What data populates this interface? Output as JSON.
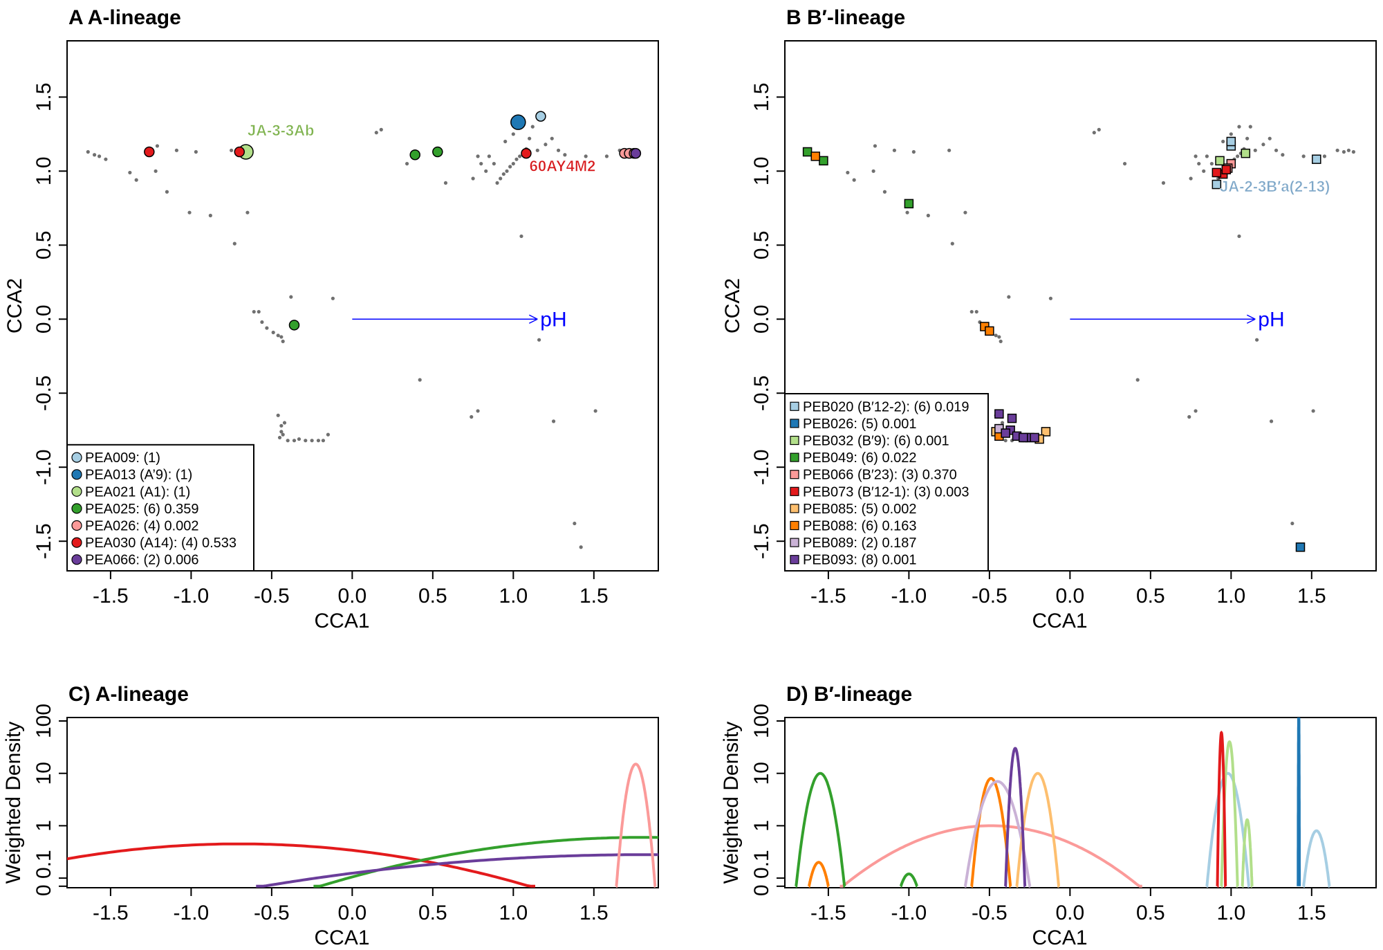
{
  "chart_data": [
    {
      "id": "A",
      "type": "scatter",
      "title": "A  A-lineage",
      "xlabel": "CCA1",
      "ylabel": "CCA2",
      "xlim": [
        -1.77,
        1.9
      ],
      "ylim": [
        -1.7,
        1.88
      ],
      "xticks": [
        "-1.5",
        "-1.0",
        "-0.5",
        "0.0",
        "0.5",
        "1.0",
        "1.5"
      ],
      "yticks": [
        "-1.5",
        "-1.0",
        "-0.5",
        "0.0",
        "0.5",
        "1.0",
        "1.5"
      ],
      "marker": "circle",
      "legend_position": "bottom-left",
      "arrow": {
        "label": "pH",
        "from": [
          0,
          0
        ],
        "to": [
          1.15,
          0
        ],
        "color": "#0000ff"
      },
      "annotations": [
        {
          "text": "JA-3-3Ab",
          "x": -0.65,
          "y": 1.24,
          "color": "#7fb34f"
        },
        {
          "text": "60AY4M2",
          "x": 1.1,
          "y": 1.0,
          "color": "#d7191c"
        }
      ],
      "series": [
        {
          "name": "PEA009: (1)",
          "color": "#a6cee3",
          "points": [
            [
              1.17,
              1.37
            ]
          ],
          "size": 1
        },
        {
          "name": "PEA013 (A’9): (1)",
          "color": "#1f78b4",
          "points": [
            [
              1.03,
              1.33
            ]
          ],
          "size": 1.5
        },
        {
          "name": "PEA021 (A1): (1)",
          "color": "#b2df8a",
          "points": [
            [
              -0.66,
              1.13
            ]
          ],
          "size": 1.5
        },
        {
          "name": "PEA025: (6) 0.359",
          "color": "#33a02c",
          "points": [
            [
              0.39,
              1.11
            ],
            [
              0.53,
              1.13
            ],
            [
              -0.36,
              -0.04
            ]
          ],
          "size": 1
        },
        {
          "name": "PEA026: (4) 0.002",
          "color": "#fb9a99",
          "points": [
            [
              1.69,
              1.12
            ],
            [
              1.72,
              1.12
            ],
            [
              1.75,
              1.12
            ]
          ],
          "size": 1
        },
        {
          "name": "PEA030 (A14): (4) 0.533",
          "color": "#e31a1c",
          "points": [
            [
              -1.26,
              1.13
            ],
            [
              -0.7,
              1.13
            ],
            [
              1.08,
              1.12
            ]
          ],
          "size": 1
        },
        {
          "name": "PEA066: (2) 0.006",
          "color": "#6a3d9a",
          "points": [
            [
              1.76,
              1.12
            ]
          ],
          "size": 1
        }
      ]
    },
    {
      "id": "B",
      "type": "scatter",
      "title": "B  B′-lineage",
      "xlabel": "CCA1",
      "ylabel": "CCA2",
      "xlim": [
        -1.77,
        1.9
      ],
      "ylim": [
        -1.7,
        1.88
      ],
      "xticks": [
        "-1.5",
        "-1.0",
        "-0.5",
        "0.0",
        "0.5",
        "1.0",
        "1.5"
      ],
      "yticks": [
        "-1.5",
        "-1.0",
        "-0.5",
        "0.0",
        "0.5",
        "1.0",
        "1.5"
      ],
      "marker": "square",
      "legend_position": "bottom-left",
      "arrow": {
        "label": "pH",
        "from": [
          0,
          0
        ],
        "to": [
          1.15,
          0
        ],
        "color": "#0000ff"
      },
      "annotations": [
        {
          "text": "JA-2-3B′a(2-13)",
          "x": 0.93,
          "y": 0.86,
          "color": "#7fa8c9"
        }
      ],
      "series": [
        {
          "name": "PEB020 (B′12-2): (6) 0.019",
          "color": "#a6cee3",
          "points": [
            [
              1.0,
              1.17
            ],
            [
              0.91,
              0.91
            ],
            [
              1.53,
              1.08
            ],
            [
              1.0,
              1.2
            ]
          ]
        },
        {
          "name": "PEB026: (5) 0.001",
          "color": "#1f78b4",
          "points": [
            [
              1.43,
              -1.54
            ]
          ]
        },
        {
          "name": "PEB032 (B′9): (6) 0.001",
          "color": "#b2df8a",
          "points": [
            [
              1.09,
              1.12
            ],
            [
              0.93,
              1.07
            ]
          ]
        },
        {
          "name": "PEB049: (6) 0.022",
          "color": "#33a02c",
          "points": [
            [
              -1.63,
              1.13
            ],
            [
              -1.53,
              1.07
            ],
            [
              -1.0,
              0.78
            ]
          ]
        },
        {
          "name": "PEB066 (B′23): (3) 0.370",
          "color": "#fb9a99",
          "points": [
            [
              1.0,
              1.05
            ],
            [
              0.98,
              1.02
            ]
          ]
        },
        {
          "name": "PEB073 (B′12-1): (3) 0.003",
          "color": "#e31a1c",
          "points": [
            [
              0.95,
              0.98
            ],
            [
              0.91,
              0.99
            ],
            [
              0.97,
              1.01
            ]
          ]
        },
        {
          "name": "PEB085: (5) 0.002",
          "color": "#fdbf6f",
          "points": [
            [
              -0.15,
              -0.76
            ],
            [
              -0.19,
              -0.81
            ],
            [
              -0.46,
              -0.76
            ]
          ]
        },
        {
          "name": "PEB088: (6) 0.163",
          "color": "#ff7f00",
          "points": [
            [
              -1.58,
              1.1
            ],
            [
              -0.53,
              -0.05
            ],
            [
              -0.5,
              -0.08
            ],
            [
              -0.44,
              -0.79
            ]
          ]
        },
        {
          "name": "PEB089: (2) 0.187",
          "color": "#cab2d6",
          "points": [
            [
              -0.44,
              -0.74
            ],
            [
              -0.28,
              -0.8
            ]
          ]
        },
        {
          "name": "PEB093: (8) 0.001",
          "color": "#6a3d9a",
          "points": [
            [
              -0.44,
              -0.64
            ],
            [
              -0.36,
              -0.67
            ],
            [
              -0.37,
              -0.75
            ],
            [
              -0.33,
              -0.79
            ],
            [
              -0.25,
              -0.8
            ],
            [
              -0.22,
              -0.8
            ],
            [
              -0.4,
              -0.77
            ],
            [
              -0.29,
              -0.8
            ]
          ]
        }
      ]
    },
    {
      "id": "C",
      "type": "line",
      "title": "C) A-lineage",
      "xlabel": "CCA1",
      "ylabel": "Weighted Density",
      "xlim": [
        -1.77,
        1.9
      ],
      "xticks": [
        "-1.5",
        "-1.0",
        "-0.5",
        "0.0",
        "0.5",
        "1.0",
        "1.5"
      ],
      "yticks": [
        "0",
        "0.1",
        "1",
        "10",
        "100"
      ],
      "yscale": "log",
      "series": [
        {
          "color": "#e31a1c",
          "peaks": [
            [
              -0.7,
              0.45,
              1.8
            ]
          ]
        },
        {
          "color": "#33a02c",
          "peaks": [
            [
              1.8,
              0.6,
              2.0
            ]
          ]
        },
        {
          "color": "#6a3d9a",
          "peaks": [
            [
              1.8,
              0.28,
              2.35
            ]
          ]
        },
        {
          "color": "#fb9a99",
          "peaks": [
            [
              1.76,
              15,
              0.12
            ]
          ]
        }
      ]
    },
    {
      "id": "D",
      "type": "line",
      "title": "D) B′-lineage",
      "xlabel": "CCA1",
      "ylabel": "Weighted Density",
      "xlim": [
        -1.77,
        1.9
      ],
      "xticks": [
        "-1.5",
        "-1.0",
        "-0.5",
        "0.0",
        "0.5",
        "1.0",
        "1.5"
      ],
      "yticks": [
        "0",
        "0.1",
        "1",
        "10",
        "100"
      ],
      "yscale": "log",
      "series": [
        {
          "color": "#fb9a99",
          "peaks": [
            [
              -0.49,
              1.0,
              0.92
            ]
          ]
        },
        {
          "color": "#33a02c",
          "peaks": [
            [
              -1.55,
              10,
              0.15
            ],
            [
              -1.0,
              0.12,
              0.05
            ]
          ]
        },
        {
          "color": "#ff7f00",
          "peaks": [
            [
              -1.56,
              0.2,
              0.06
            ],
            [
              -0.49,
              8,
              0.12
            ]
          ]
        },
        {
          "color": "#cab2d6",
          "peaks": [
            [
              -0.45,
              7,
              0.2
            ]
          ]
        },
        {
          "color": "#fdbf6f",
          "peaks": [
            [
              -0.2,
              10,
              0.13
            ]
          ]
        },
        {
          "color": "#6a3d9a",
          "peaks": [
            [
              -0.34,
              30,
              0.06
            ]
          ]
        },
        {
          "color": "#a6cee3",
          "peaks": [
            [
              0.98,
              10,
              0.13
            ],
            [
              1.53,
              0.8,
              0.08
            ]
          ]
        },
        {
          "color": "#b2df8a",
          "peaks": [
            [
              0.99,
              40,
              0.05
            ],
            [
              1.1,
              1.3,
              0.03
            ]
          ]
        },
        {
          "color": "#e31a1c",
          "peaks": [
            [
              0.94,
              60,
              0.025
            ]
          ]
        },
        {
          "color": "#1f78b4",
          "peaks": [
            [
              1.42,
              200,
              0.004
            ]
          ]
        }
      ]
    }
  ],
  "background_points": [
    [
      -1.64,
      1.13
    ],
    [
      -1.6,
      1.11
    ],
    [
      -1.57,
      1.1
    ],
    [
      -1.53,
      1.08
    ],
    [
      -1.38,
      0.99
    ],
    [
      -1.34,
      0.94
    ],
    [
      -1.21,
      1.17
    ],
    [
      -1.22,
      1.0
    ],
    [
      -1.15,
      0.86
    ],
    [
      -1.09,
      1.14
    ],
    [
      -1.01,
      0.72
    ],
    [
      -0.97,
      1.13
    ],
    [
      -0.88,
      0.7
    ],
    [
      -0.73,
      0.51
    ],
    [
      -0.65,
      0.72
    ],
    [
      -0.75,
      1.14
    ],
    [
      -0.61,
      0.05
    ],
    [
      -0.58,
      0.05
    ],
    [
      -0.56,
      -0.02
    ],
    [
      -0.53,
      -0.06
    ],
    [
      -0.49,
      -0.09
    ],
    [
      -0.46,
      -0.11
    ],
    [
      -0.44,
      -0.12
    ],
    [
      -0.38,
      0.15
    ],
    [
      -0.43,
      -0.15
    ],
    [
      -0.12,
      0.14
    ],
    [
      -0.46,
      -0.65
    ],
    [
      -0.44,
      -0.72
    ],
    [
      -0.43,
      -0.78
    ],
    [
      -0.45,
      -0.8
    ],
    [
      -0.4,
      -0.82
    ],
    [
      -0.36,
      -0.82
    ],
    [
      -0.33,
      -0.81
    ],
    [
      -0.29,
      -0.82
    ],
    [
      -0.25,
      -0.82
    ],
    [
      -0.21,
      -0.82
    ],
    [
      -0.18,
      -0.82
    ],
    [
      -0.15,
      -0.78
    ],
    [
      -0.42,
      -0.7
    ],
    [
      -0.44,
      -0.76
    ],
    [
      0.15,
      1.26
    ],
    [
      0.18,
      1.28
    ],
    [
      0.34,
      1.05
    ],
    [
      0.58,
      0.92
    ],
    [
      0.42,
      -0.41
    ],
    [
      0.74,
      -0.66
    ],
    [
      0.78,
      -0.62
    ],
    [
      1.05,
      0.56
    ],
    [
      1.16,
      -0.14
    ],
    [
      1.25,
      -0.69
    ],
    [
      1.51,
      -0.62
    ],
    [
      1.38,
      -1.38
    ],
    [
      1.42,
      -1.54
    ],
    [
      0.9,
      0.92
    ],
    [
      0.92,
      0.95
    ],
    [
      0.94,
      0.98
    ],
    [
      0.96,
      1.0
    ],
    [
      0.98,
      1.03
    ],
    [
      1.0,
      1.05
    ],
    [
      1.02,
      1.08
    ],
    [
      1.04,
      1.1
    ],
    [
      1.06,
      1.12
    ],
    [
      1.08,
      1.15
    ],
    [
      0.88,
      1.05
    ],
    [
      0.85,
      1.1
    ],
    [
      0.83,
      1.0
    ],
    [
      0.95,
      1.2
    ],
    [
      1.0,
      1.25
    ],
    [
      1.05,
      1.3
    ],
    [
      1.12,
      1.3
    ],
    [
      1.1,
      1.22
    ],
    [
      1.15,
      1.14
    ],
    [
      1.28,
      1.14
    ],
    [
      1.32,
      1.11
    ],
    [
      1.45,
      1.1
    ],
    [
      1.58,
      1.1
    ],
    [
      1.66,
      1.14
    ],
    [
      1.7,
      1.13
    ],
    [
      1.73,
      1.14
    ],
    [
      1.76,
      1.13
    ],
    [
      0.78,
      1.1
    ],
    [
      0.8,
      1.05
    ],
    [
      0.75,
      0.95
    ],
    [
      1.2,
      1.18
    ],
    [
      1.24,
      1.22
    ]
  ]
}
